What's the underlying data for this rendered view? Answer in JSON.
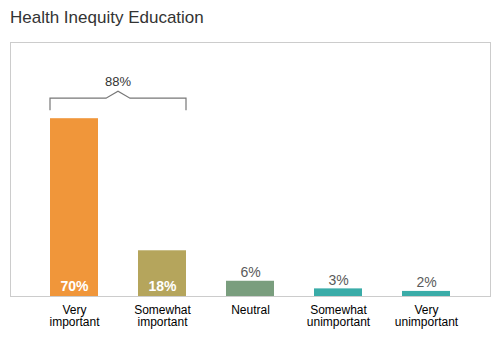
{
  "chart_data": {
    "type": "bar",
    "title": "Health Inequity Education",
    "categories": [
      "Very\nimportant",
      "Somewhat\nimportant",
      "Neutral",
      "Somewhat\nunimportant",
      "Very\nunimportant"
    ],
    "values": [
      70,
      18,
      6,
      3,
      2
    ],
    "value_labels": [
      "70%",
      "18%",
      "6%",
      "3%",
      "2%"
    ],
    "data_labels": true,
    "colors": [
      "#F0963A",
      "#B5A55C",
      "#7A9E7E",
      "#3AACA8",
      "#3AACA8"
    ],
    "ylim": [
      0,
      100
    ],
    "tick_labels": "x",
    "grid": false,
    "annotations": [
      {
        "text": "88%",
        "categories": [
          "Very\nimportant",
          "Somewhat\nimportant"
        ]
      }
    ]
  }
}
